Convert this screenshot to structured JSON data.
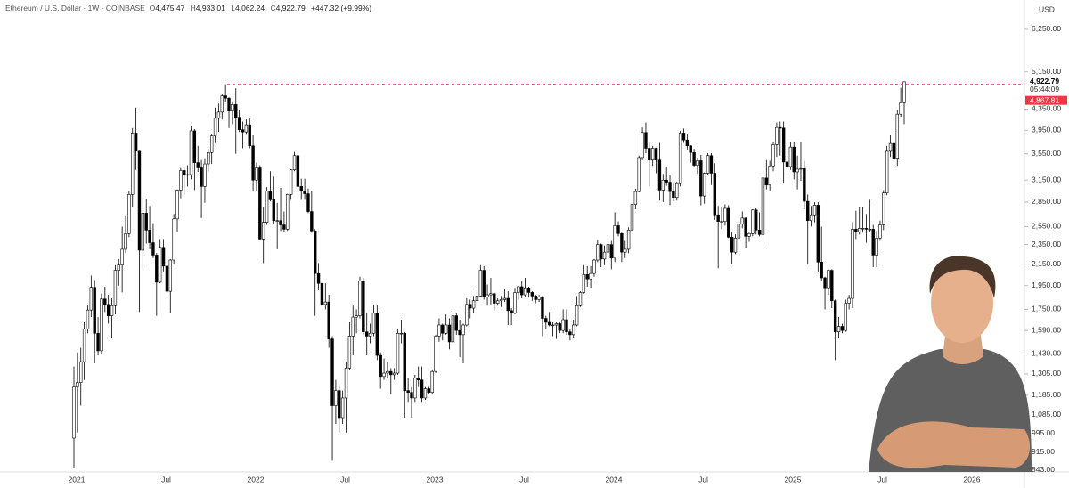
{
  "header": {
    "symbol": "Ethereum / U.S. Dollar · 1W · COINBASE",
    "fields": [
      {
        "key": "O",
        "value": "4,475.47"
      },
      {
        "key": "H",
        "value": "4,933.01"
      },
      {
        "key": "L",
        "value": "4,062.24"
      },
      {
        "key": "C",
        "value": "4,922.79"
      }
    ],
    "change": "+447.32 (+9.99%)"
  },
  "chart_data": {
    "type": "candlestick",
    "currency": "USD",
    "log_scale": true,
    "up_color": "#ffffff",
    "down_color": "#000000",
    "xlabels": [
      "2021",
      "Jul",
      "2022",
      "Jul",
      "2023",
      "Jul",
      "2024",
      "Jul",
      "2025",
      "Jul",
      "2026"
    ],
    "ylim": [
      836,
      7140
    ],
    "yticks": [
      {
        "value": 6250,
        "label": "6,250.00"
      },
      {
        "value": 5150,
        "label": "5,150.00"
      },
      {
        "value": 4350,
        "label": "4,350.00"
      },
      {
        "value": 3950,
        "label": "3,950.00"
      },
      {
        "value": 3550,
        "label": "3,550.00"
      },
      {
        "value": 3150,
        "label": "3,150.00"
      },
      {
        "value": 2850,
        "label": "2,850.00"
      },
      {
        "value": 2550,
        "label": "2,550.00"
      },
      {
        "value": 2350,
        "label": "2,350.00"
      },
      {
        "value": 2150,
        "label": "2,150.00"
      },
      {
        "value": 1950,
        "label": "1,950.00"
      },
      {
        "value": 1750,
        "label": "1,750.00"
      },
      {
        "value": 1590,
        "label": "1,590.00"
      },
      {
        "value": 1430,
        "label": "1,430.00"
      },
      {
        "value": 1305,
        "label": "1,305.00"
      },
      {
        "value": 1185,
        "label": "1,185.00"
      },
      {
        "value": 1085,
        "label": "1,085.00"
      },
      {
        "value": 995,
        "label": "995.00"
      },
      {
        "value": 915,
        "label": "915.00"
      },
      {
        "value": 843,
        "label": "843.00"
      }
    ],
    "last_price": {
      "value": 4922.79,
      "label": "4,922.79"
    },
    "countdown": "05:44:09",
    "levels": [
      {
        "value": 4867.81,
        "label": "4,867.81",
        "color": "#f23645"
      }
    ],
    "candles": [
      [
        975,
        1350,
        850,
        1230
      ],
      [
        1230,
        1440,
        1000,
        1255
      ],
      [
        1255,
        1470,
        1130,
        1380
      ],
      [
        1380,
        1650,
        1270,
        1600
      ],
      [
        1600,
        1780,
        1570,
        1745
      ],
      [
        1745,
        2040,
        1690,
        1935
      ],
      [
        1935,
        2000,
        1370,
        1570
      ],
      [
        1570,
        1690,
        1420,
        1450
      ],
      [
        1450,
        1880,
        1430,
        1835
      ],
      [
        1835,
        1940,
        1730,
        1790
      ],
      [
        1790,
        1870,
        1640,
        1700
      ],
      [
        1700,
        1840,
        1540,
        1780
      ],
      [
        1780,
        2140,
        1710,
        2090
      ],
      [
        2090,
        2200,
        1950,
        2140
      ],
      [
        2140,
        2550,
        1890,
        2300
      ],
      [
        2300,
        2670,
        2260,
        2470
      ],
      [
        2470,
        3000,
        2430,
        2950
      ],
      [
        2950,
        3990,
        2790,
        3900
      ],
      [
        3900,
        4380,
        3300,
        3590
      ],
      [
        3590,
        3600,
        1730,
        2290
      ],
      [
        2290,
        2910,
        2100,
        2710
      ],
      [
        2710,
        2890,
        2360,
        2510
      ],
      [
        2510,
        2800,
        2300,
        2370
      ],
      [
        2370,
        2590,
        2210,
        2240
      ],
      [
        2240,
        2260,
        1700,
        1980
      ],
      [
        1980,
        2410,
        1970,
        2320
      ],
      [
        2320,
        2410,
        2080,
        2130
      ],
      [
        2130,
        2190,
        1860,
        1900
      ],
      [
        1900,
        2200,
        1720,
        2190
      ],
      [
        2190,
        2700,
        2150,
        2640
      ],
      [
        2640,
        3020,
        2490,
        3010
      ],
      [
        3010,
        3330,
        2900,
        3290
      ],
      [
        3290,
        3330,
        2950,
        3220
      ],
      [
        3220,
        3370,
        3060,
        3230
      ],
      [
        3230,
        4030,
        3160,
        3940
      ],
      [
        3940,
        3970,
        3010,
        3410
      ],
      [
        3410,
        3680,
        3270,
        3330
      ],
      [
        3330,
        3450,
        2650,
        3060
      ],
      [
        3060,
        3480,
        2840,
        3390
      ],
      [
        3390,
        3630,
        3280,
        3570
      ],
      [
        3570,
        3890,
        3390,
        3850
      ],
      [
        3850,
        4380,
        3730,
        4170
      ],
      [
        4170,
        4460,
        3920,
        4290
      ],
      [
        4290,
        4670,
        4150,
        4620
      ],
      [
        4620,
        4870,
        4500,
        4570
      ],
      [
        4570,
        4590,
        3990,
        4310
      ],
      [
        4310,
        4480,
        4060,
        4440
      ],
      [
        4440,
        4780,
        3550,
        4190
      ],
      [
        4190,
        4320,
        3920,
        3960
      ],
      [
        3960,
        4110,
        3640,
        3920
      ],
      [
        3920,
        4150,
        3870,
        4050
      ],
      [
        4050,
        4170,
        3640,
        3680
      ],
      [
        3680,
        3860,
        2990,
        3150
      ],
      [
        3150,
        3410,
        3000,
        3330
      ],
      [
        3330,
        3370,
        2400,
        2410
      ],
      [
        2410,
        2790,
        2160,
        2600
      ],
      [
        2600,
        3050,
        2570,
        3000
      ],
      [
        3000,
        3280,
        2860,
        2880
      ],
      [
        2880,
        3200,
        2580,
        2620
      ],
      [
        2620,
        2840,
        2300,
        2620
      ],
      [
        2620,
        3040,
        2500,
        2570
      ],
      [
        2570,
        2730,
        2490,
        2520
      ],
      [
        2520,
        2960,
        2500,
        2950
      ],
      [
        2950,
        3310,
        2880,
        3300
      ],
      [
        3300,
        3580,
        3280,
        3520
      ],
      [
        3520,
        3550,
        3050,
        3060
      ],
      [
        3060,
        3170,
        2880,
        3000
      ],
      [
        3000,
        3170,
        2880,
        2960
      ],
      [
        2960,
        3030,
        2710,
        2730
      ],
      [
        2730,
        3000,
        2480,
        2500
      ],
      [
        2500,
        2520,
        1700,
        2060
      ],
      [
        2060,
        2160,
        1910,
        1970
      ],
      [
        1970,
        2020,
        1720,
        1790
      ],
      [
        1790,
        1970,
        1750,
        1810
      ],
      [
        1810,
        1870,
        1470,
        1530
      ],
      [
        1530,
        1550,
        880,
        1130
      ],
      [
        1130,
        1270,
        1040,
        1210
      ],
      [
        1210,
        1240,
        1000,
        1070
      ],
      [
        1070,
        1210,
        1040,
        1170
      ],
      [
        1170,
        1380,
        1000,
        1340
      ],
      [
        1340,
        1650,
        1330,
        1550
      ],
      [
        1550,
        1780,
        1420,
        1690
      ],
      [
        1690,
        1750,
        1570,
        1700
      ],
      [
        1700,
        2030,
        1680,
        1990
      ],
      [
        1990,
        2020,
        1560,
        1580
      ],
      [
        1580,
        1720,
        1420,
        1550
      ],
      [
        1550,
        1640,
        1500,
        1570
      ],
      [
        1570,
        1790,
        1550,
        1720
      ],
      [
        1720,
        1790,
        1390,
        1420
      ],
      [
        1420,
        1440,
        1220,
        1290
      ],
      [
        1290,
        1400,
        1270,
        1310
      ],
      [
        1310,
        1380,
        1280,
        1320
      ],
      [
        1320,
        1340,
        1190,
        1300
      ],
      [
        1300,
        1340,
        1270,
        1310
      ],
      [
        1310,
        1600,
        1300,
        1570
      ],
      [
        1570,
        1670,
        1500,
        1570
      ],
      [
        1570,
        1580,
        1070,
        1210
      ],
      [
        1210,
        1280,
        1150,
        1200
      ],
      [
        1200,
        1230,
        1070,
        1170
      ],
      [
        1170,
        1300,
        1150,
        1280
      ],
      [
        1280,
        1350,
        1230,
        1270
      ],
      [
        1270,
        1350,
        1150,
        1170
      ],
      [
        1170,
        1230,
        1160,
        1220
      ],
      [
        1220,
        1230,
        1190,
        1200
      ],
      [
        1200,
        1330,
        1190,
        1320
      ],
      [
        1320,
        1560,
        1310,
        1550
      ],
      [
        1550,
        1680,
        1510,
        1630
      ],
      [
        1630,
        1640,
        1520,
        1570
      ],
      [
        1570,
        1710,
        1560,
        1630
      ],
      [
        1630,
        1680,
        1460,
        1510
      ],
      [
        1510,
        1740,
        1490,
        1700
      ],
      [
        1700,
        1720,
        1560,
        1590
      ],
      [
        1590,
        1670,
        1410,
        1560
      ],
      [
        1560,
        1640,
        1370,
        1630
      ],
      [
        1630,
        1840,
        1620,
        1790
      ],
      [
        1790,
        1830,
        1680,
        1760
      ],
      [
        1760,
        1860,
        1720,
        1820
      ],
      [
        1820,
        1940,
        1780,
        1860
      ],
      [
        1860,
        2140,
        1850,
        2090
      ],
      [
        2090,
        2130,
        1830,
        1850
      ],
      [
        1850,
        1960,
        1780,
        1870
      ],
      [
        1870,
        2020,
        1790,
        1880
      ],
      [
        1880,
        1890,
        1740,
        1800
      ],
      [
        1800,
        1840,
        1780,
        1820
      ],
      [
        1820,
        1860,
        1770,
        1830
      ],
      [
        1830,
        1920,
        1810,
        1840
      ],
      [
        1840,
        1900,
        1630,
        1740
      ],
      [
        1740,
        1760,
        1630,
        1720
      ],
      [
        1720,
        1930,
        1710,
        1890
      ],
      [
        1890,
        1950,
        1830,
        1940
      ],
      [
        1940,
        1990,
        1840,
        1870
      ],
      [
        1870,
        2020,
        1850,
        1930
      ],
      [
        1930,
        1940,
        1850,
        1890
      ],
      [
        1890,
        1900,
        1820,
        1860
      ],
      [
        1860,
        1870,
        1800,
        1830
      ],
      [
        1830,
        1870,
        1810,
        1850
      ],
      [
        1850,
        1860,
        1550,
        1680
      ],
      [
        1680,
        1700,
        1600,
        1650
      ],
      [
        1650,
        1730,
        1620,
        1630
      ],
      [
        1630,
        1650,
        1550,
        1630
      ],
      [
        1630,
        1650,
        1530,
        1640
      ],
      [
        1640,
        1650,
        1570,
        1590
      ],
      [
        1590,
        1750,
        1570,
        1670
      ],
      [
        1670,
        1750,
        1560,
        1580
      ],
      [
        1580,
        1600,
        1520,
        1560
      ],
      [
        1560,
        1670,
        1540,
        1630
      ],
      [
        1630,
        1860,
        1620,
        1780
      ],
      [
        1780,
        1900,
        1770,
        1890
      ],
      [
        1890,
        2140,
        1880,
        2050
      ],
      [
        2050,
        2130,
        1940,
        2010
      ],
      [
        2010,
        2130,
        1930,
        2060
      ],
      [
        2060,
        2200,
        2030,
        2190
      ],
      [
        2190,
        2400,
        2170,
        2350
      ],
      [
        2350,
        2360,
        2120,
        2200
      ],
      [
        2200,
        2340,
        2140,
        2270
      ],
      [
        2270,
        2440,
        2260,
        2350
      ],
      [
        2350,
        2390,
        2100,
        2210
      ],
      [
        2210,
        2720,
        2170,
        2560
      ],
      [
        2560,
        2610,
        2440,
        2470
      ],
      [
        2470,
        2480,
        2170,
        2270
      ],
      [
        2270,
        2390,
        2210,
        2300
      ],
      [
        2300,
        2540,
        2260,
        2510
      ],
      [
        2510,
        2860,
        2500,
        2820
      ],
      [
        2820,
        3030,
        2760,
        2990
      ],
      [
        2990,
        3520,
        2980,
        3490
      ],
      [
        3490,
        4000,
        3450,
        3910
      ],
      [
        3910,
        4090,
        3560,
        3640
      ],
      [
        3640,
        3730,
        3060,
        3450
      ],
      [
        3450,
        3680,
        3360,
        3640
      ],
      [
        3640,
        3650,
        3250,
        3450
      ],
      [
        3450,
        3730,
        2870,
        3010
      ],
      [
        3010,
        3240,
        2850,
        3150
      ],
      [
        3150,
        3350,
        3070,
        3120
      ],
      [
        3120,
        3220,
        2810,
        2990
      ],
      [
        2990,
        3120,
        2860,
        2910
      ],
      [
        2910,
        3130,
        2870,
        3100
      ],
      [
        3100,
        3940,
        3060,
        3900
      ],
      [
        3900,
        3980,
        3730,
        3780
      ],
      [
        3780,
        3890,
        3620,
        3680
      ],
      [
        3680,
        3690,
        3410,
        3570
      ],
      [
        3570,
        3630,
        3350,
        3370
      ],
      [
        3370,
        3490,
        3240,
        3440
      ],
      [
        3440,
        3530,
        2810,
        2930
      ],
      [
        2930,
        3260,
        2830,
        3250
      ],
      [
        3250,
        3560,
        3230,
        3520
      ],
      [
        3520,
        3560,
        3080,
        3250
      ],
      [
        3250,
        3400,
        2630,
        2690
      ],
      [
        2690,
        2800,
        2110,
        2610
      ],
      [
        2610,
        2790,
        2520,
        2610
      ],
      [
        2610,
        2820,
        2560,
        2770
      ],
      [
        2770,
        2810,
        2420,
        2430
      ],
      [
        2430,
        2490,
        2150,
        2270
      ],
      [
        2270,
        2460,
        2250,
        2420
      ],
      [
        2420,
        2700,
        2280,
        2580
      ],
      [
        2580,
        2730,
        2530,
        2650
      ],
      [
        2650,
        2660,
        2310,
        2440
      ],
      [
        2440,
        2480,
        2380,
        2470
      ],
      [
        2470,
        2760,
        2440,
        2750
      ],
      [
        2750,
        2770,
        2460,
        2510
      ],
      [
        2510,
        2720,
        2440,
        2460
      ],
      [
        2460,
        3250,
        2360,
        3180
      ],
      [
        3180,
        3450,
        3020,
        3080
      ],
      [
        3080,
        3440,
        3000,
        3360
      ],
      [
        3360,
        3740,
        3280,
        3700
      ],
      [
        3700,
        4090,
        3500,
        4000
      ],
      [
        4000,
        4110,
        3520,
        3990
      ],
      [
        3990,
        4110,
        3100,
        3420
      ],
      [
        3420,
        3550,
        3260,
        3350
      ],
      [
        3350,
        3740,
        3300,
        3660
      ],
      [
        3660,
        3740,
        3160,
        3270
      ],
      [
        3270,
        3520,
        3020,
        3310
      ],
      [
        3310,
        3740,
        3140,
        3320
      ],
      [
        3320,
        3440,
        2760,
        2860
      ],
      [
        2860,
        2950,
        2150,
        2620
      ],
      [
        2620,
        2800,
        2550,
        2690
      ],
      [
        2690,
        2850,
        2600,
        2810
      ],
      [
        2810,
        2850,
        2080,
        2170
      ],
      [
        2170,
        2550,
        1990,
        2020
      ],
      [
        2020,
        2030,
        1750,
        1930
      ],
      [
        1930,
        2100,
        1870,
        2090
      ],
      [
        2090,
        2100,
        1760,
        1820
      ],
      [
        1820,
        1830,
        1390,
        1580
      ],
      [
        1580,
        1690,
        1540,
        1620
      ],
      [
        1620,
        1640,
        1570,
        1590
      ],
      [
        1590,
        1830,
        1580,
        1800
      ],
      [
        1800,
        1870,
        1750,
        1840
      ],
      [
        1840,
        2600,
        1760,
        2520
      ],
      [
        2520,
        2740,
        2410,
        2490
      ],
      [
        2490,
        2790,
        2460,
        2530
      ],
      [
        2530,
        2790,
        2480,
        2530
      ],
      [
        2530,
        2700,
        2370,
        2520
      ],
      [
        2520,
        2880,
        2490,
        2520
      ],
      [
        2520,
        2570,
        2120,
        2240
      ],
      [
        2240,
        2500,
        2120,
        2420
      ],
      [
        2420,
        2620,
        2390,
        2570
      ],
      [
        2570,
        3010,
        2510,
        2970
      ],
      [
        2970,
        3680,
        2940,
        3590
      ],
      [
        3590,
        3860,
        3500,
        3720
      ],
      [
        3720,
        3940,
        3350,
        3480
      ],
      [
        3480,
        4330,
        3360,
        4250
      ],
      [
        4250,
        4790,
        4200,
        4475.47
      ],
      [
        4475.47,
        4933.01,
        4062.24,
        4922.79
      ]
    ]
  }
}
